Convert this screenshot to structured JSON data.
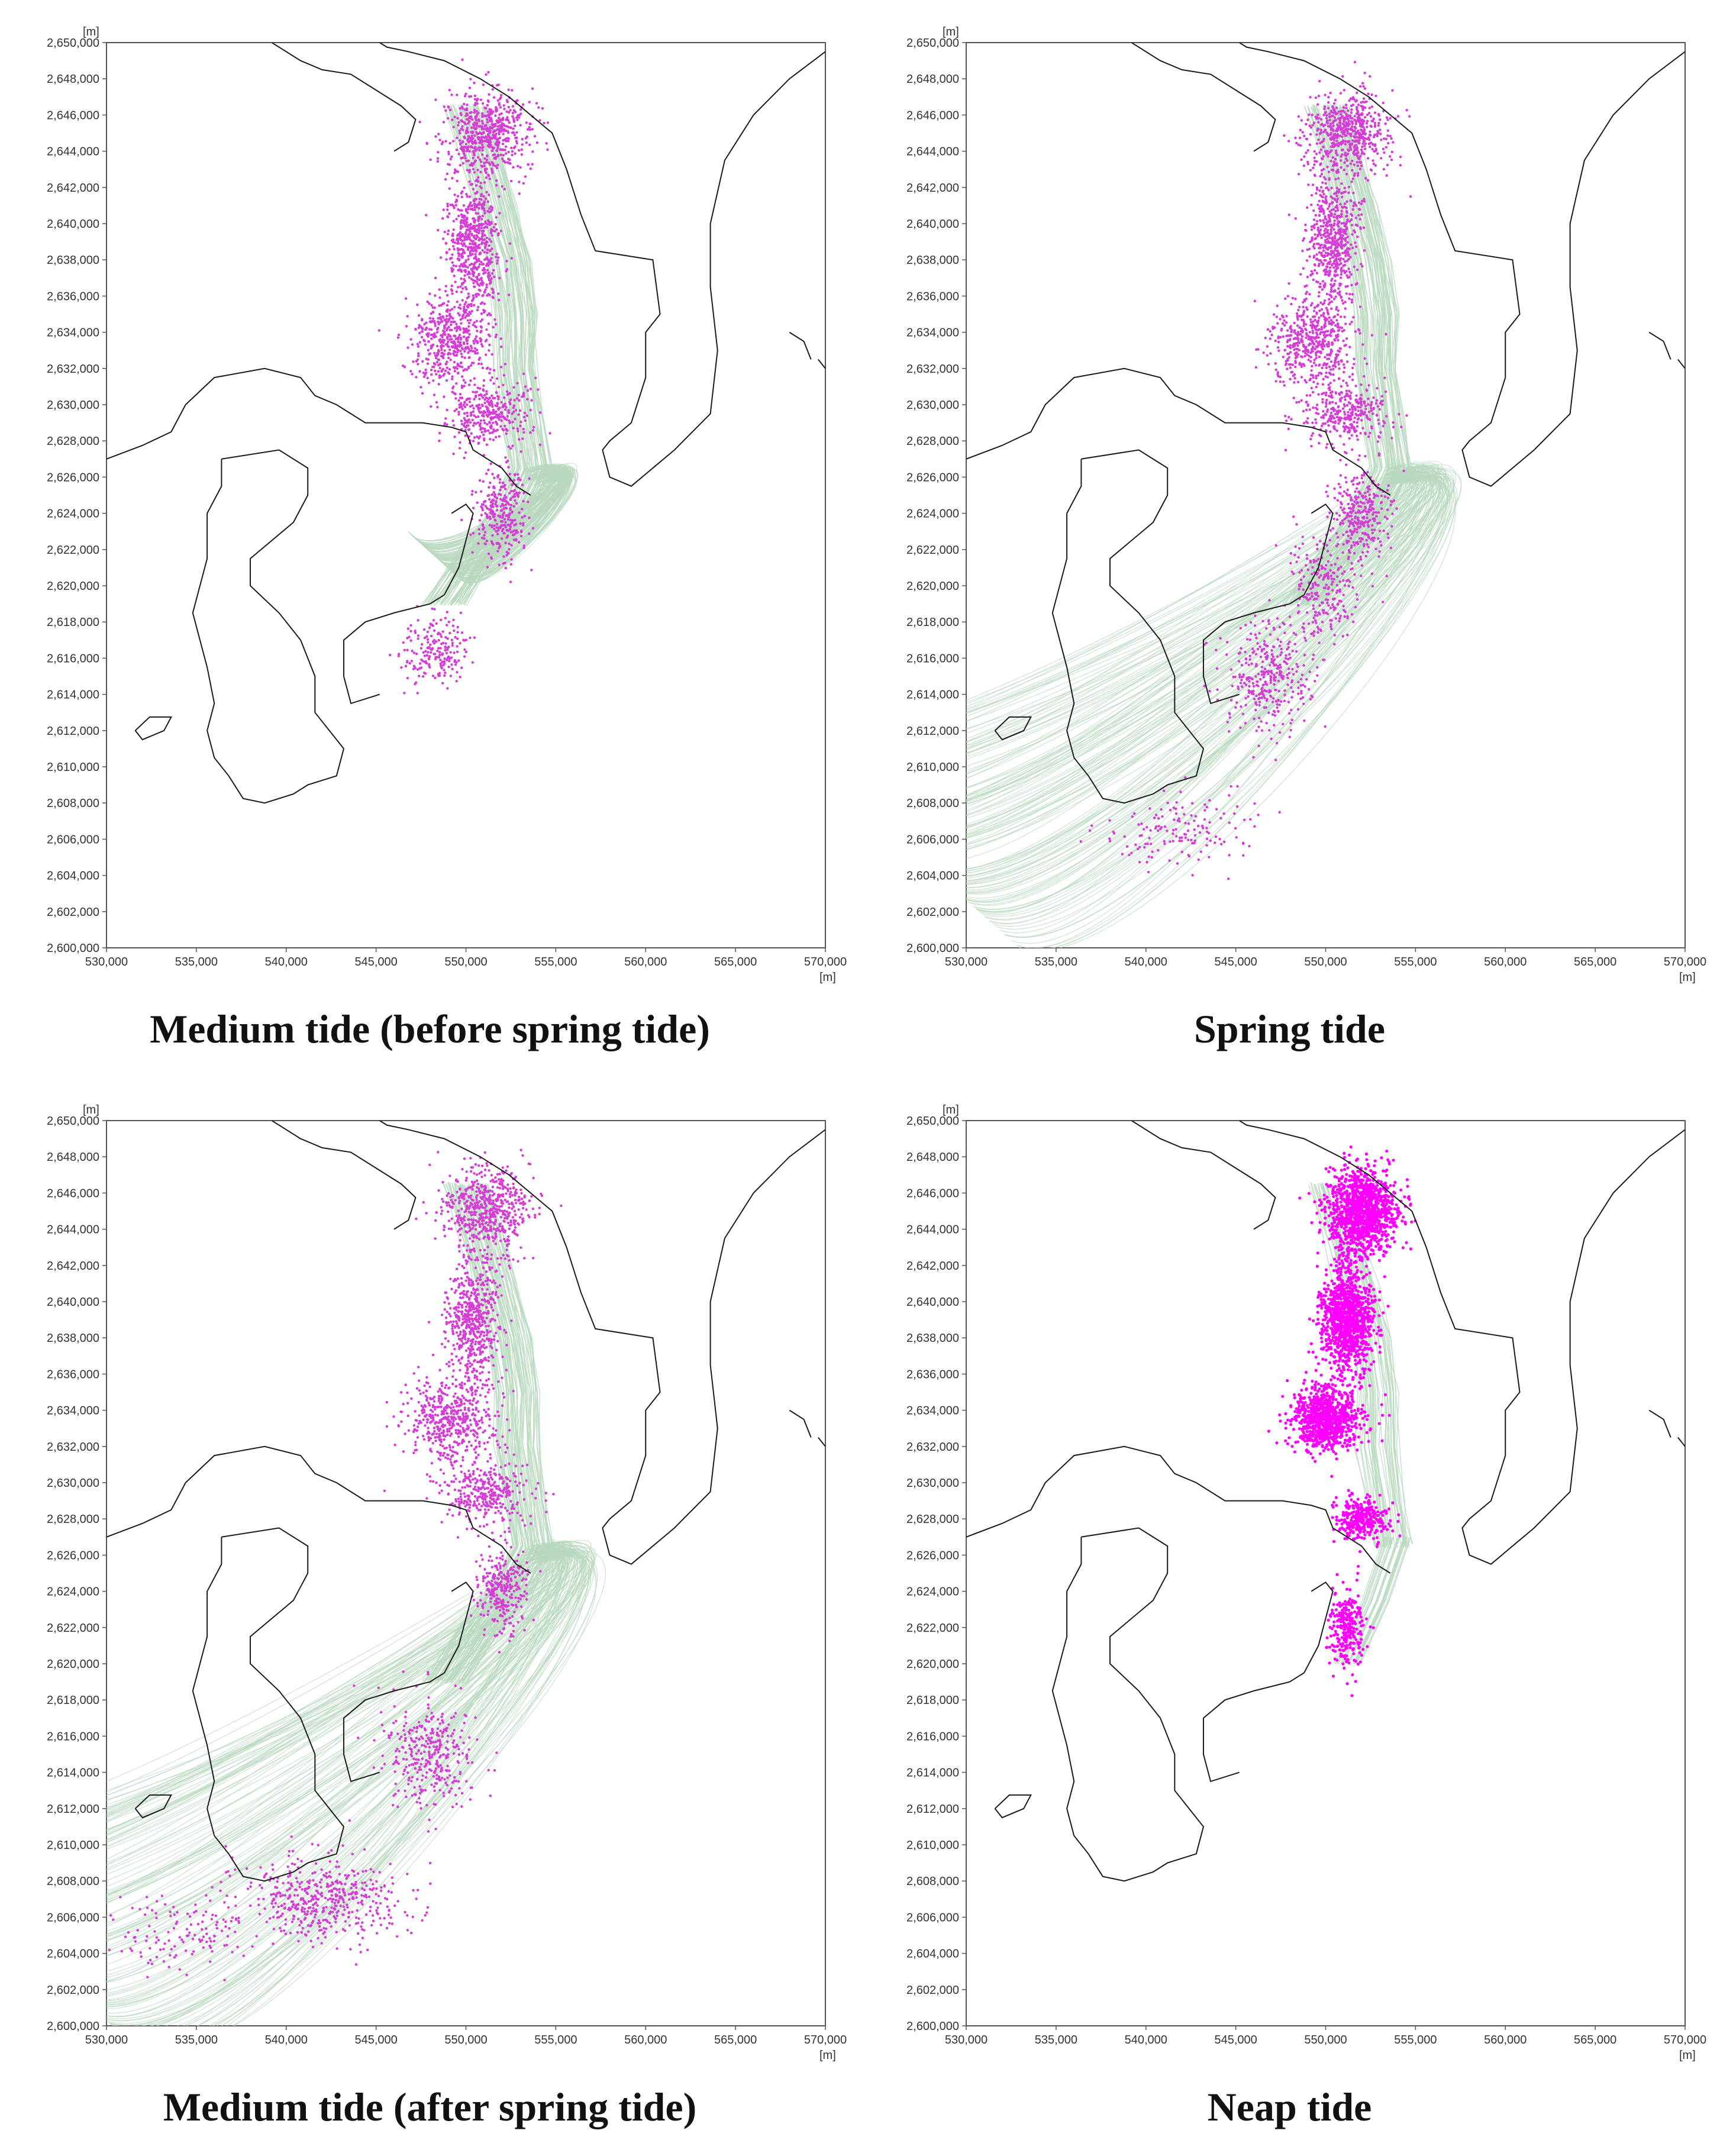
{
  "axes": {
    "x_unit": "[m]",
    "y_unit": "[m]",
    "x_range": [
      530000,
      570000
    ],
    "y_range": [
      2600000,
      2650000
    ],
    "x_ticks": [
      "530,000",
      "535,000",
      "540,000",
      "545,000",
      "550,000",
      "555,000",
      "560,000",
      "565,000",
      "570,000"
    ],
    "y_ticks": [
      "2,600,000",
      "2,602,000",
      "2,604,000",
      "2,606,000",
      "2,608,000",
      "2,610,000",
      "2,612,000",
      "2,614,000",
      "2,616,000",
      "2,618,000",
      "2,620,000",
      "2,622,000",
      "2,624,000",
      "2,626,000",
      "2,628,000",
      "2,630,000",
      "2,632,000",
      "2,634,000",
      "2,636,000",
      "2,638,000",
      "2,640,000",
      "2,642,000",
      "2,644,000",
      "2,646,000",
      "2,648,000",
      "2,650,000"
    ]
  },
  "colors": {
    "coastline": "#1a1a1a",
    "trajectory": "#b9d9bf",
    "particle": "#d63cd6",
    "particle_neap": "#ff00ff",
    "frame": "#555555"
  },
  "panels": [
    {
      "caption": "Medium tide (before spring tide)",
      "extent": "medium"
    },
    {
      "caption": "Spring tide",
      "extent": "spring"
    },
    {
      "caption": "Medium tide (after spring tide)",
      "extent": "medium-after"
    },
    {
      "caption": "Neap tide",
      "extent": "neap"
    }
  ]
}
